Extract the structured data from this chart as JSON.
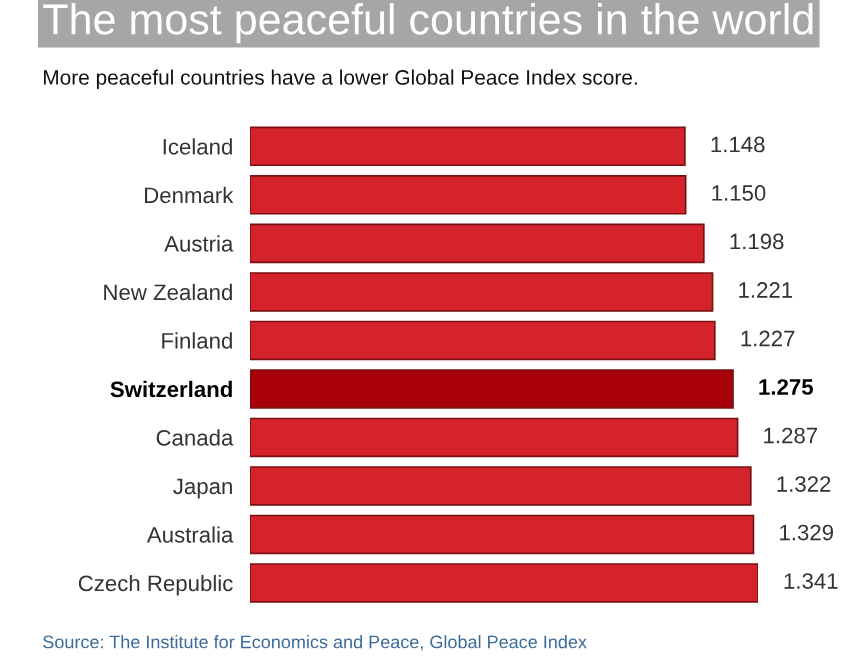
{
  "chart_data": {
    "type": "bar",
    "orientation": "horizontal",
    "title": "The most peaceful countries in the world",
    "subtitle": "More peaceful countries have a lower Global Peace Index score.",
    "categories": [
      "Iceland",
      "Denmark",
      "Austria",
      "New Zealand",
      "Finland",
      "Switzerland",
      "Canada",
      "Japan",
      "Australia",
      "Czech Republic"
    ],
    "values": [
      1.148,
      1.15,
      1.198,
      1.221,
      1.227,
      1.275,
      1.287,
      1.322,
      1.329,
      1.341
    ],
    "value_labels": [
      "1.148",
      "1.150",
      "1.198",
      "1.221",
      "1.227",
      "1.275",
      "1.287",
      "1.322",
      "1.329",
      "1.341"
    ],
    "colors": [
      "#d4232a",
      "#d4232a",
      "#d4232a",
      "#d4232a",
      "#d4232a",
      "#a80008",
      "#d4232a",
      "#d4232a",
      "#d4232a",
      "#d4232a"
    ],
    "xlim": [
      0,
      1.341
    ],
    "grid": false,
    "legend": false,
    "annotations": [
      "Source: The Institute for Economics and Peace, Global Peace Index"
    ]
  }
}
